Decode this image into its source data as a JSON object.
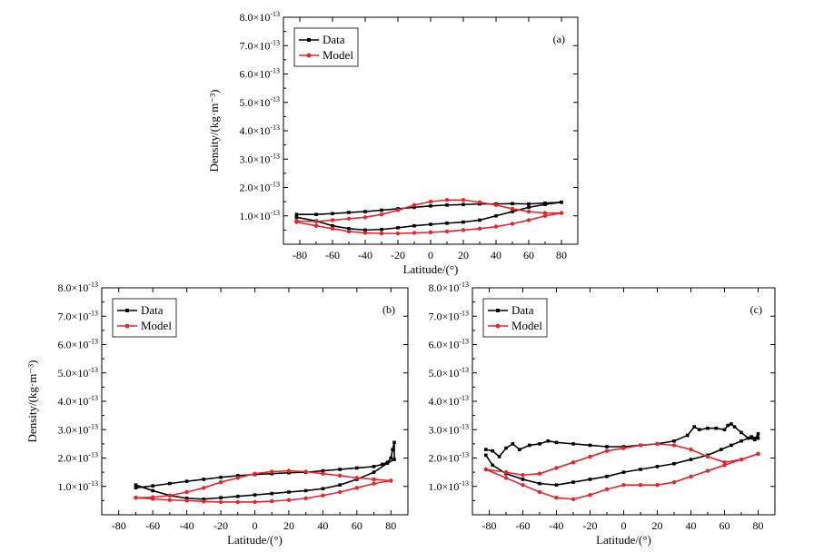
{
  "colors": {
    "data": "#000000",
    "model": "#e8242b"
  },
  "chart_data": [
    {
      "type": "line",
      "panel_label": "(a)",
      "xlabel": "Latitude/(°)",
      "ylabel": "Density/(kg·m⁻³)",
      "xlim": [
        -90,
        90
      ],
      "ylim": [
        0,
        8
      ],
      "x_ticks": [
        "-80",
        "-60",
        "-40",
        "-20",
        "0",
        "20",
        "40",
        "60",
        "80"
      ],
      "y_ticks": [
        "1.0×10⁻¹³",
        "2.0×10⁻¹³",
        "3.0×10⁻¹³",
        "4.0×10⁻¹³",
        "5.0×10⁻¹³",
        "6.0×10⁻¹³",
        "7.0×10⁻¹³",
        "8.0×10⁻¹³"
      ],
      "legend": [
        "Data",
        "Model"
      ],
      "series": [
        {
          "name": "Data",
          "x": [
            -82,
            -70,
            -60,
            -50,
            -40,
            -30,
            -20,
            -10,
            0,
            10,
            20,
            30,
            40,
            50,
            60,
            70,
            80,
            80,
            70,
            60,
            50,
            40,
            30,
            20,
            10,
            0,
            -10,
            -20,
            -30,
            -40,
            -50,
            -60,
            -70,
            -82
          ],
          "y": [
            1.05,
            1.05,
            1.08,
            1.12,
            1.15,
            1.2,
            1.25,
            1.3,
            1.35,
            1.38,
            1.4,
            1.42,
            1.42,
            1.43,
            1.42,
            1.45,
            1.48,
            1.48,
            1.4,
            1.3,
            1.15,
            1.0,
            0.85,
            0.78,
            0.74,
            0.7,
            0.65,
            0.58,
            0.52,
            0.5,
            0.55,
            0.65,
            0.82,
            0.95
          ]
        },
        {
          "name": "Model",
          "x": [
            -82,
            -70,
            -60,
            -50,
            -40,
            -30,
            -20,
            -10,
            0,
            10,
            20,
            30,
            40,
            50,
            60,
            70,
            80,
            80,
            70,
            60,
            50,
            40,
            30,
            20,
            10,
            0,
            -10,
            -20,
            -30,
            -40,
            -50,
            -60,
            -70,
            -82
          ],
          "y": [
            0.82,
            0.8,
            0.85,
            0.9,
            0.95,
            1.05,
            1.2,
            1.38,
            1.5,
            1.56,
            1.56,
            1.48,
            1.38,
            1.25,
            1.15,
            1.1,
            1.1,
            1.1,
            1.0,
            0.85,
            0.72,
            0.62,
            0.55,
            0.5,
            0.45,
            0.42,
            0.4,
            0.38,
            0.38,
            0.4,
            0.45,
            0.55,
            0.65,
            0.78
          ]
        }
      ]
    },
    {
      "type": "line",
      "panel_label": "(b)",
      "xlabel": "Latitude/(°)",
      "ylabel": "Density/(kg·m⁻³)",
      "xlim": [
        -90,
        90
      ],
      "ylim": [
        0,
        8
      ],
      "x_ticks": [
        "-80",
        "-60",
        "-40",
        "-20",
        "0",
        "20",
        "40",
        "60",
        "80"
      ],
      "y_ticks": [
        "1.0×10⁻¹³",
        "2.0×10⁻¹³",
        "3.0×10⁻¹³",
        "4.0×10⁻¹³",
        "5.0×10⁻¹³",
        "6.0×10⁻¹³",
        "7.0×10⁻¹³",
        "8.0×10⁻¹³"
      ],
      "legend": [
        "Data",
        "Model"
      ],
      "series": [
        {
          "name": "Data",
          "x": [
            -70,
            -60,
            -50,
            -40,
            -30,
            -20,
            -10,
            0,
            10,
            20,
            30,
            40,
            50,
            60,
            70,
            75,
            78,
            80,
            81,
            82,
            82,
            78,
            70,
            60,
            50,
            40,
            30,
            20,
            10,
            0,
            -10,
            -20,
            -30,
            -40,
            -50,
            -60,
            -70
          ],
          "y": [
            0.95,
            1.02,
            1.1,
            1.18,
            1.25,
            1.32,
            1.38,
            1.42,
            1.45,
            1.48,
            1.5,
            1.55,
            1.6,
            1.65,
            1.7,
            1.78,
            1.85,
            2.0,
            2.3,
            2.55,
            1.95,
            1.82,
            1.5,
            1.25,
            1.05,
            0.92,
            0.85,
            0.8,
            0.75,
            0.7,
            0.65,
            0.6,
            0.55,
            0.58,
            0.68,
            0.85,
            1.05
          ]
        },
        {
          "name": "Model",
          "x": [
            -70,
            -60,
            -50,
            -40,
            -30,
            -20,
            -10,
            0,
            10,
            20,
            30,
            40,
            50,
            60,
            70,
            80,
            80,
            70,
            60,
            50,
            40,
            30,
            20,
            10,
            0,
            -10,
            -20,
            -30,
            -40,
            -50,
            -60,
            -70
          ],
          "y": [
            0.6,
            0.62,
            0.68,
            0.8,
            0.95,
            1.15,
            1.3,
            1.45,
            1.52,
            1.55,
            1.52,
            1.45,
            1.38,
            1.3,
            1.25,
            1.2,
            1.2,
            1.1,
            0.95,
            0.8,
            0.68,
            0.58,
            0.52,
            0.48,
            0.45,
            0.45,
            0.45,
            0.47,
            0.5,
            0.52,
            0.56,
            0.6
          ]
        }
      ]
    },
    {
      "type": "line",
      "panel_label": "(c)",
      "xlabel": "Latitude/(°)",
      "ylabel": "",
      "xlim": [
        -90,
        90
      ],
      "ylim": [
        0,
        8
      ],
      "x_ticks": [
        "-80",
        "-60",
        "-40",
        "-20",
        "0",
        "20",
        "40",
        "60",
        "80"
      ],
      "y_ticks": [
        "1.0×10⁻¹³",
        "2.0×10⁻¹³",
        "3.0×10⁻¹³",
        "4.0×10⁻¹³",
        "5.0×10⁻¹³",
        "6.0×10⁻¹³",
        "7.0×10⁻¹³",
        "8.0×10⁻¹³"
      ],
      "legend": [
        "Data",
        "Model"
      ],
      "series": [
        {
          "name": "Data",
          "x": [
            -82,
            -78,
            -74,
            -70,
            -66,
            -62,
            -56,
            -50,
            -45,
            -40,
            -30,
            -20,
            -10,
            0,
            10,
            20,
            30,
            38,
            42,
            45,
            50,
            55,
            60,
            62,
            64,
            66,
            70,
            74,
            78,
            80,
            80,
            76,
            70,
            64,
            58,
            50,
            40,
            30,
            20,
            10,
            0,
            -10,
            -20,
            -30,
            -40,
            -50,
            -60,
            -70,
            -78,
            -82
          ],
          "y": [
            2.3,
            2.25,
            2.05,
            2.35,
            2.5,
            2.3,
            2.45,
            2.5,
            2.6,
            2.55,
            2.5,
            2.45,
            2.4,
            2.4,
            2.45,
            2.5,
            2.6,
            2.8,
            3.1,
            3.0,
            3.05,
            3.05,
            3.0,
            3.15,
            3.2,
            3.1,
            2.9,
            2.7,
            2.65,
            2.85,
            2.7,
            2.75,
            2.6,
            2.45,
            2.3,
            2.1,
            1.95,
            1.8,
            1.7,
            1.6,
            1.5,
            1.35,
            1.25,
            1.15,
            1.05,
            1.1,
            1.25,
            1.45,
            1.75,
            2.1
          ]
        },
        {
          "name": "Model",
          "x": [
            -82,
            -70,
            -60,
            -50,
            -40,
            -30,
            -20,
            -10,
            0,
            10,
            20,
            30,
            40,
            50,
            60,
            70,
            80,
            80,
            70,
            60,
            50,
            40,
            30,
            20,
            10,
            0,
            -10,
            -20,
            -30,
            -40,
            -50,
            -60,
            -70,
            -82
          ],
          "y": [
            1.6,
            1.5,
            1.4,
            1.45,
            1.65,
            1.85,
            2.05,
            2.25,
            2.35,
            2.45,
            2.5,
            2.45,
            2.3,
            2.05,
            1.85,
            1.95,
            2.15,
            2.15,
            1.95,
            1.75,
            1.55,
            1.35,
            1.15,
            1.05,
            1.05,
            1.05,
            0.9,
            0.7,
            0.55,
            0.6,
            0.8,
            1.05,
            1.3,
            1.6
          ]
        }
      ]
    }
  ]
}
